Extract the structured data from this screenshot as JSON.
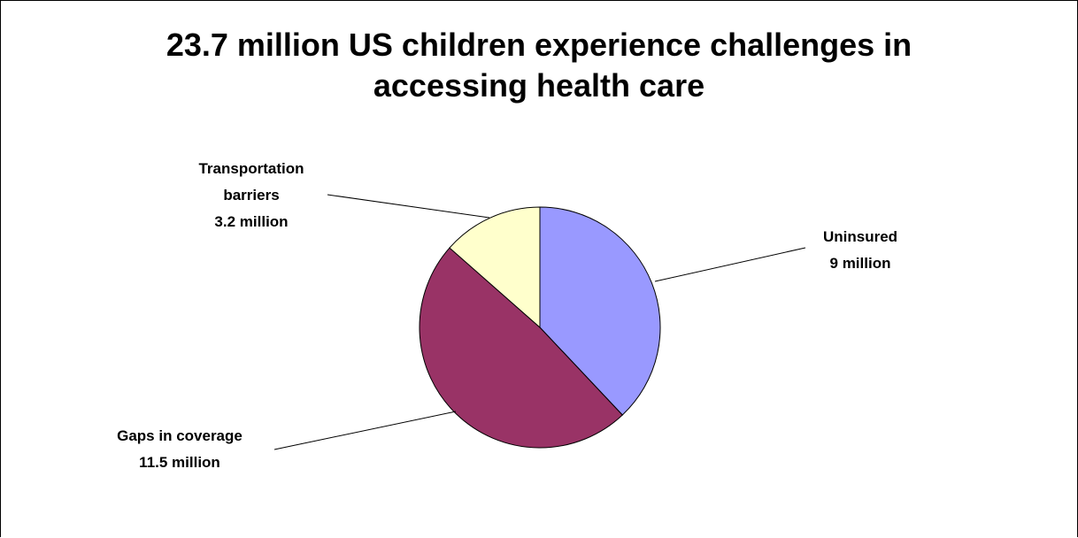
{
  "title": {
    "line1": "23.7 million US children experience challenges in",
    "line2": "accessing health care"
  },
  "chart_data": {
    "type": "pie",
    "title": "23.7 million US children experience challenges in accessing health care",
    "slices": [
      {
        "name": "Uninsured",
        "value_label": "9 million",
        "value": 9,
        "color": "#9999ff"
      },
      {
        "name": "Gaps in coverage",
        "value_label": "11.5 million",
        "value": 11.5,
        "color": "#993366"
      },
      {
        "name": "Transportation barriers",
        "value_label": "3.2 million",
        "value": 3.2,
        "color": "#ffffcc"
      }
    ],
    "start": "top",
    "direction": "clockwise",
    "legend": "none"
  }
}
